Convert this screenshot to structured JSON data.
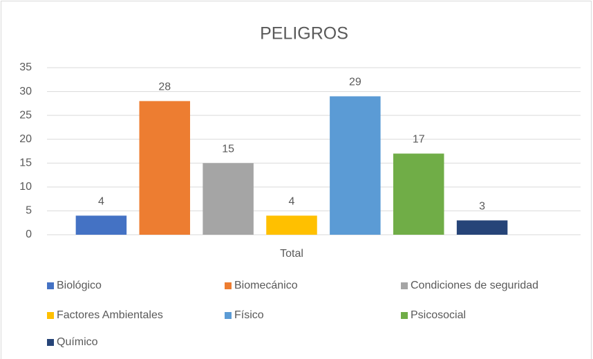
{
  "chart_data": {
    "type": "bar",
    "title": "PELIGROS",
    "categories": [
      "Total"
    ],
    "series": [
      {
        "name": "Biológico",
        "color": "#4472c4",
        "values": [
          4
        ]
      },
      {
        "name": "Biomecánico",
        "color": "#ed7d31",
        "values": [
          28
        ]
      },
      {
        "name": "Condiciones de seguridad",
        "color": "#a5a5a5",
        "values": [
          15
        ]
      },
      {
        "name": "Factores Ambientales",
        "color": "#ffc000",
        "values": [
          4
        ]
      },
      {
        "name": "Físico",
        "color": "#5b9bd5",
        "values": [
          29
        ]
      },
      {
        "name": "Psicosocial",
        "color": "#70ad47",
        "values": [
          17
        ]
      },
      {
        "name": "Químico",
        "color": "#264478",
        "values": [
          3
        ]
      }
    ],
    "ylim": [
      0,
      35
    ],
    "yticks": [
      0,
      5,
      10,
      15,
      20,
      25,
      30,
      35
    ],
    "grid": true,
    "legend": "bottom"
  }
}
